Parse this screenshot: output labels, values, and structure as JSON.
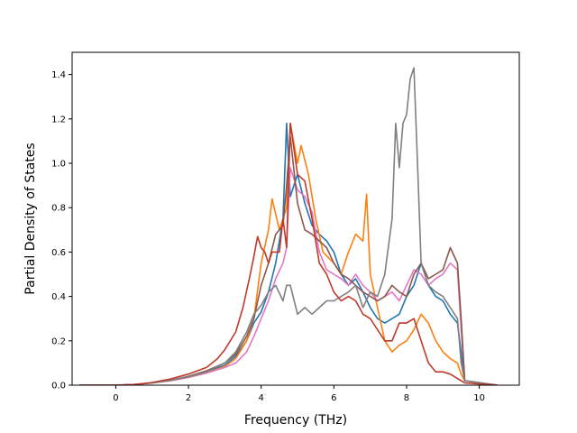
{
  "chart_data": {
    "type": "line",
    "title": "",
    "xlabel": "Frequency (THz)",
    "ylabel": "Partial Density of States",
    "xlim": [
      -1.2,
      11.1
    ],
    "ylim": [
      0.0,
      1.5
    ],
    "xticks": [
      0,
      2,
      4,
      6,
      8,
      10
    ],
    "xtick_labels": [
      "0",
      "2",
      "4",
      "6",
      "8",
      "10"
    ],
    "yticks": [
      0.0,
      0.2,
      0.4,
      0.6,
      0.8,
      1.0,
      1.2,
      1.4
    ],
    "ytick_labels": [
      "0.0",
      "0.2",
      "0.4",
      "0.6",
      "0.8",
      "1.0",
      "1.2",
      "1.4"
    ],
    "grid": false,
    "series": [
      {
        "color": "#1f77b4",
        "points": [
          [
            -1.0,
            0
          ],
          [
            0,
            0
          ],
          [
            0.5,
            0.003
          ],
          [
            1.0,
            0.01
          ],
          [
            1.5,
            0.022
          ],
          [
            2.0,
            0.038
          ],
          [
            2.5,
            0.06
          ],
          [
            3.0,
            0.09
          ],
          [
            3.3,
            0.13
          ],
          [
            3.6,
            0.2
          ],
          [
            3.8,
            0.28
          ],
          [
            4.0,
            0.33
          ],
          [
            4.2,
            0.42
          ],
          [
            4.4,
            0.55
          ],
          [
            4.6,
            0.75
          ],
          [
            4.7,
            1.18
          ],
          [
            4.8,
            0.85
          ],
          [
            5.0,
            0.95
          ],
          [
            5.2,
            0.82
          ],
          [
            5.4,
            0.72
          ],
          [
            5.6,
            0.68
          ],
          [
            5.8,
            0.65
          ],
          [
            6.0,
            0.6
          ],
          [
            6.2,
            0.5
          ],
          [
            6.4,
            0.45
          ],
          [
            6.6,
            0.48
          ],
          [
            6.8,
            0.42
          ],
          [
            7.0,
            0.35
          ],
          [
            7.2,
            0.3
          ],
          [
            7.4,
            0.28
          ],
          [
            7.6,
            0.3
          ],
          [
            7.8,
            0.32
          ],
          [
            8.0,
            0.4
          ],
          [
            8.2,
            0.45
          ],
          [
            8.4,
            0.55
          ],
          [
            8.6,
            0.45
          ],
          [
            8.8,
            0.4
          ],
          [
            9.0,
            0.38
          ],
          [
            9.2,
            0.32
          ],
          [
            9.4,
            0.28
          ],
          [
            9.5,
            0.15
          ],
          [
            9.6,
            0.02
          ],
          [
            10.5,
            0
          ]
        ]
      },
      {
        "color": "#ff7f0e",
        "points": [
          [
            -1.0,
            0
          ],
          [
            0,
            0
          ],
          [
            0.5,
            0.003
          ],
          [
            1.0,
            0.01
          ],
          [
            1.5,
            0.02
          ],
          [
            2.0,
            0.035
          ],
          [
            2.5,
            0.055
          ],
          [
            3.0,
            0.085
          ],
          [
            3.3,
            0.12
          ],
          [
            3.6,
            0.2
          ],
          [
            3.8,
            0.3
          ],
          [
            4.0,
            0.55
          ],
          [
            4.2,
            0.7
          ],
          [
            4.3,
            0.84
          ],
          [
            4.5,
            0.7
          ],
          [
            4.7,
            0.8
          ],
          [
            4.8,
            1.18
          ],
          [
            5.0,
            1.0
          ],
          [
            5.1,
            1.08
          ],
          [
            5.3,
            0.95
          ],
          [
            5.5,
            0.75
          ],
          [
            5.7,
            0.6
          ],
          [
            6.0,
            0.55
          ],
          [
            6.2,
            0.5
          ],
          [
            6.4,
            0.6
          ],
          [
            6.6,
            0.68
          ],
          [
            6.8,
            0.65
          ],
          [
            6.9,
            0.86
          ],
          [
            7.0,
            0.5
          ],
          [
            7.2,
            0.35
          ],
          [
            7.4,
            0.2
          ],
          [
            7.6,
            0.15
          ],
          [
            7.8,
            0.18
          ],
          [
            8.0,
            0.2
          ],
          [
            8.2,
            0.25
          ],
          [
            8.4,
            0.32
          ],
          [
            8.6,
            0.28
          ],
          [
            8.8,
            0.2
          ],
          [
            9.0,
            0.15
          ],
          [
            9.2,
            0.12
          ],
          [
            9.4,
            0.1
          ],
          [
            9.5,
            0.05
          ],
          [
            9.6,
            0.02
          ],
          [
            10.5,
            0
          ]
        ]
      },
      {
        "color": "#e377c2",
        "points": [
          [
            -1.0,
            0
          ],
          [
            0,
            0
          ],
          [
            0.5,
            0.003
          ],
          [
            1.0,
            0.01
          ],
          [
            1.5,
            0.02
          ],
          [
            2.0,
            0.035
          ],
          [
            2.5,
            0.055
          ],
          [
            3.0,
            0.08
          ],
          [
            3.3,
            0.1
          ],
          [
            3.6,
            0.15
          ],
          [
            3.8,
            0.22
          ],
          [
            4.0,
            0.3
          ],
          [
            4.2,
            0.38
          ],
          [
            4.4,
            0.48
          ],
          [
            4.6,
            0.55
          ],
          [
            4.7,
            0.62
          ],
          [
            4.8,
            0.98
          ],
          [
            5.0,
            0.88
          ],
          [
            5.2,
            0.85
          ],
          [
            5.4,
            0.78
          ],
          [
            5.6,
            0.6
          ],
          [
            5.8,
            0.52
          ],
          [
            6.0,
            0.5
          ],
          [
            6.2,
            0.48
          ],
          [
            6.4,
            0.45
          ],
          [
            6.6,
            0.5
          ],
          [
            6.8,
            0.45
          ],
          [
            7.0,
            0.42
          ],
          [
            7.2,
            0.38
          ],
          [
            7.4,
            0.4
          ],
          [
            7.6,
            0.42
          ],
          [
            7.8,
            0.38
          ],
          [
            8.0,
            0.45
          ],
          [
            8.2,
            0.52
          ],
          [
            8.4,
            0.5
          ],
          [
            8.6,
            0.45
          ],
          [
            8.8,
            0.48
          ],
          [
            9.0,
            0.5
          ],
          [
            9.2,
            0.55
          ],
          [
            9.4,
            0.52
          ],
          [
            9.5,
            0.25
          ],
          [
            9.6,
            0.02
          ],
          [
            10.5,
            0
          ]
        ]
      },
      {
        "color": "#8c564b",
        "points": [
          [
            -1.0,
            0
          ],
          [
            0,
            0
          ],
          [
            0.5,
            0.003
          ],
          [
            1.0,
            0.01
          ],
          [
            1.5,
            0.022
          ],
          [
            2.0,
            0.04
          ],
          [
            2.5,
            0.065
          ],
          [
            3.0,
            0.1
          ],
          [
            3.3,
            0.14
          ],
          [
            3.6,
            0.22
          ],
          [
            3.8,
            0.3
          ],
          [
            4.0,
            0.45
          ],
          [
            4.2,
            0.55
          ],
          [
            4.4,
            0.68
          ],
          [
            4.6,
            0.72
          ],
          [
            4.7,
            0.9
          ],
          [
            4.8,
            1.12
          ],
          [
            5.0,
            0.82
          ],
          [
            5.2,
            0.7
          ],
          [
            5.4,
            0.68
          ],
          [
            5.6,
            0.65
          ],
          [
            5.8,
            0.62
          ],
          [
            6.0,
            0.55
          ],
          [
            6.2,
            0.5
          ],
          [
            6.4,
            0.48
          ],
          [
            6.6,
            0.45
          ],
          [
            6.8,
            0.42
          ],
          [
            7.0,
            0.4
          ],
          [
            7.2,
            0.38
          ],
          [
            7.4,
            0.4
          ],
          [
            7.6,
            0.45
          ],
          [
            7.8,
            0.42
          ],
          [
            8.0,
            0.4
          ],
          [
            8.2,
            0.5
          ],
          [
            8.4,
            0.55
          ],
          [
            8.6,
            0.48
          ],
          [
            8.8,
            0.5
          ],
          [
            9.0,
            0.52
          ],
          [
            9.2,
            0.62
          ],
          [
            9.4,
            0.55
          ],
          [
            9.5,
            0.3
          ],
          [
            9.6,
            0.02
          ],
          [
            10.5,
            0
          ]
        ]
      },
      {
        "color": "#7f7f7f",
        "points": [
          [
            -1.0,
            0
          ],
          [
            0,
            0
          ],
          [
            0.5,
            0.003
          ],
          [
            1.0,
            0.01
          ],
          [
            1.5,
            0.022
          ],
          [
            2.0,
            0.038
          ],
          [
            2.5,
            0.06
          ],
          [
            3.0,
            0.1
          ],
          [
            3.3,
            0.15
          ],
          [
            3.6,
            0.24
          ],
          [
            3.8,
            0.32
          ],
          [
            4.0,
            0.36
          ],
          [
            4.2,
            0.42
          ],
          [
            4.4,
            0.45
          ],
          [
            4.6,
            0.38
          ],
          [
            4.7,
            0.45
          ],
          [
            4.8,
            0.45
          ],
          [
            5.0,
            0.32
          ],
          [
            5.2,
            0.35
          ],
          [
            5.4,
            0.32
          ],
          [
            5.6,
            0.35
          ],
          [
            5.8,
            0.38
          ],
          [
            6.0,
            0.38
          ],
          [
            6.2,
            0.4
          ],
          [
            6.4,
            0.42
          ],
          [
            6.6,
            0.45
          ],
          [
            6.8,
            0.35
          ],
          [
            7.0,
            0.42
          ],
          [
            7.2,
            0.4
          ],
          [
            7.4,
            0.5
          ],
          [
            7.6,
            0.75
          ],
          [
            7.7,
            1.18
          ],
          [
            7.8,
            0.98
          ],
          [
            7.9,
            1.18
          ],
          [
            8.0,
            1.22
          ],
          [
            8.1,
            1.38
          ],
          [
            8.2,
            1.43
          ],
          [
            8.3,
            1.0
          ],
          [
            8.4,
            0.55
          ],
          [
            8.6,
            0.45
          ],
          [
            8.8,
            0.42
          ],
          [
            9.0,
            0.4
          ],
          [
            9.2,
            0.35
          ],
          [
            9.4,
            0.3
          ],
          [
            9.5,
            0.1
          ],
          [
            9.6,
            0.02
          ],
          [
            10.5,
            0
          ]
        ]
      },
      {
        "color": "#c0392b",
        "points": [
          [
            -1.0,
            0
          ],
          [
            0,
            0
          ],
          [
            0.5,
            0.003
          ],
          [
            1.0,
            0.012
          ],
          [
            1.5,
            0.028
          ],
          [
            2.0,
            0.05
          ],
          [
            2.5,
            0.08
          ],
          [
            2.8,
            0.12
          ],
          [
            3.0,
            0.16
          ],
          [
            3.3,
            0.24
          ],
          [
            3.5,
            0.35
          ],
          [
            3.7,
            0.5
          ],
          [
            3.8,
            0.58
          ],
          [
            3.9,
            0.67
          ],
          [
            4.0,
            0.62
          ],
          [
            4.1,
            0.6
          ],
          [
            4.2,
            0.55
          ],
          [
            4.3,
            0.6
          ],
          [
            4.5,
            0.6
          ],
          [
            4.6,
            0.75
          ],
          [
            4.7,
            0.62
          ],
          [
            4.8,
            1.18
          ],
          [
            5.0,
            0.95
          ],
          [
            5.2,
            0.92
          ],
          [
            5.4,
            0.75
          ],
          [
            5.6,
            0.55
          ],
          [
            5.8,
            0.5
          ],
          [
            6.0,
            0.42
          ],
          [
            6.2,
            0.38
          ],
          [
            6.4,
            0.4
          ],
          [
            6.6,
            0.38
          ],
          [
            6.8,
            0.32
          ],
          [
            7.0,
            0.3
          ],
          [
            7.2,
            0.25
          ],
          [
            7.4,
            0.2
          ],
          [
            7.6,
            0.2
          ],
          [
            7.8,
            0.28
          ],
          [
            8.0,
            0.28
          ],
          [
            8.2,
            0.3
          ],
          [
            8.4,
            0.2
          ],
          [
            8.6,
            0.1
          ],
          [
            8.8,
            0.06
          ],
          [
            9.0,
            0.06
          ],
          [
            9.2,
            0.05
          ],
          [
            9.4,
            0.03
          ],
          [
            9.5,
            0.02
          ],
          [
            9.6,
            0.01
          ],
          [
            10.5,
            0
          ]
        ]
      }
    ]
  }
}
